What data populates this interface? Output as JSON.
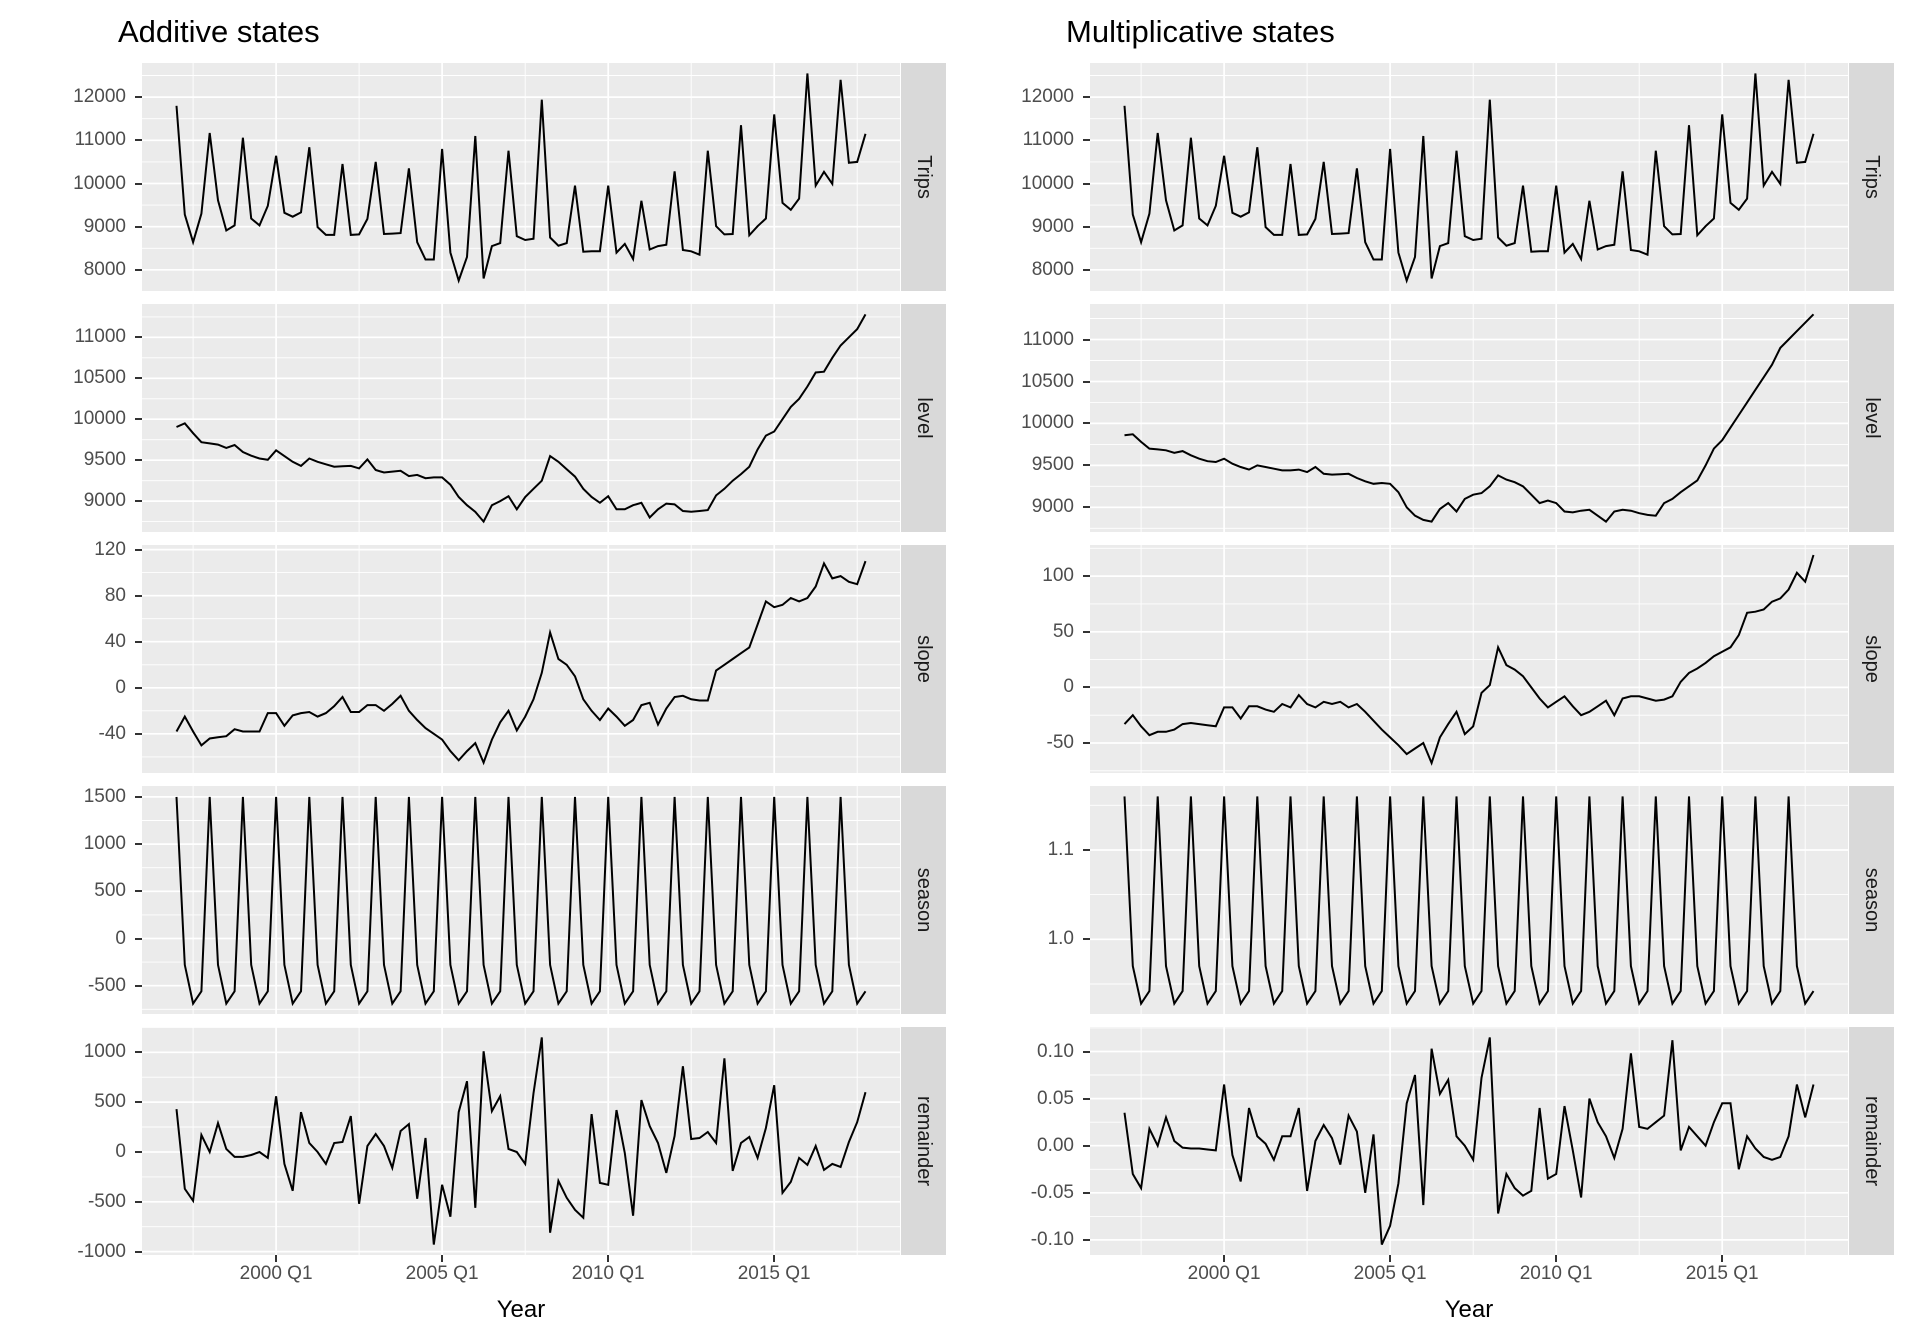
{
  "styles": {
    "page_bg": "#FFFFFF",
    "panel_bg": "#EBEBEB",
    "grid": "#FFFFFF",
    "strip_bg": "#D9D9D9",
    "strip_text": "#1A1A1A",
    "axis_text": "#4D4D4D",
    "tick": "#333333",
    "line": "#000000",
    "title": "#000000"
  },
  "chart_data": {
    "type": "line",
    "description": "ETS state decomposition, faceted time-series line charts",
    "xlabel": "Year",
    "x": {
      "start": 1997.0,
      "step": 0.25,
      "n": 84,
      "domain": [
        1995.96,
        2018.79
      ],
      "major_ticks": [
        {
          "value": 2000,
          "label": "2000 Q1"
        },
        {
          "value": 2005,
          "label": "2005 Q1"
        },
        {
          "value": 2010,
          "label": "2010 Q1"
        },
        {
          "value": 2015,
          "label": "2015 Q1"
        }
      ],
      "minor_ticks": [
        1997.5,
        2002.5,
        2007.5,
        2012.5,
        2017.5
      ]
    },
    "columns": [
      {
        "id": "additive",
        "title": "Additive states",
        "facets": [
          {
            "label": "Trips",
            "series_key": "trips",
            "ylim": [
              7510,
              12790
            ],
            "yticks": [
              {
                "v": 12000,
                "label": "12000"
              },
              {
                "v": 11000,
                "label": "11000"
              },
              {
                "v": 10000,
                "label": "10000"
              },
              {
                "v": 9000,
                "label": "9000"
              },
              {
                "v": 8000,
                "label": "8000"
              }
            ],
            "yminor": [
              8500,
              9500,
              10500,
              11500,
              12500
            ]
          },
          {
            "label": "level",
            "series_key": "additive_level",
            "ylim": [
              8623,
              11407
            ],
            "yticks": [
              {
                "v": 11000,
                "label": "11000"
              },
              {
                "v": 10500,
                "label": "10500"
              },
              {
                "v": 10000,
                "label": "10000"
              },
              {
                "v": 9500,
                "label": "9500"
              },
              {
                "v": 9000,
                "label": "9000"
              }
            ],
            "yminor": [
              8750,
              9250,
              9750,
              10250,
              10750,
              11250
            ]
          },
          {
            "label": "slope",
            "series_key": "additive_slope",
            "ylim": [
              -74,
              124
            ],
            "yticks": [
              {
                "v": 120,
                "label": "120"
              },
              {
                "v": 80,
                "label": "80"
              },
              {
                "v": 40,
                "label": "40"
              },
              {
                "v": 0,
                "label": "0"
              },
              {
                "v": -40,
                "label": "-40"
              }
            ],
            "yminor": [
              -60,
              -20,
              20,
              60,
              100
            ]
          },
          {
            "label": "season",
            "series_key": "additive_season",
            "ylim": [
              -800,
              1615
            ],
            "yticks": [
              {
                "v": 1500,
                "label": "1500"
              },
              {
                "v": 1000,
                "label": "1000"
              },
              {
                "v": 500,
                "label": "500"
              },
              {
                "v": 0,
                "label": "0"
              },
              {
                "v": -500,
                "label": "-500"
              }
            ],
            "yminor": [
              -750,
              -250,
              250,
              750,
              1250
            ]
          },
          {
            "label": "remainder",
            "series_key": "additive_remainder",
            "ylim": [
              -1034,
              1254
            ],
            "yticks": [
              {
                "v": 1000,
                "label": "1000"
              },
              {
                "v": 500,
                "label": "500"
              },
              {
                "v": 0,
                "label": "0"
              },
              {
                "v": -500,
                "label": "-500"
              },
              {
                "v": -1000,
                "label": "-1000"
              }
            ],
            "yminor": [
              -750,
              -250,
              250,
              750,
              1250
            ]
          }
        ]
      },
      {
        "id": "multiplicative",
        "title": "Multiplicative states",
        "facets": [
          {
            "label": "Trips",
            "series_key": "trips",
            "ylim": [
              7510,
              12790
            ],
            "yticks": [
              {
                "v": 12000,
                "label": "12000"
              },
              {
                "v": 11000,
                "label": "11000"
              },
              {
                "v": 10000,
                "label": "10000"
              },
              {
                "v": 9000,
                "label": "9000"
              },
              {
                "v": 8000,
                "label": "8000"
              }
            ],
            "yminor": [
              8500,
              9500,
              10500,
              11500,
              12500
            ]
          },
          {
            "label": "level",
            "series_key": "multiplicative_level",
            "ylim": [
              8706,
              11423
            ],
            "yticks": [
              {
                "v": 11000,
                "label": "11000"
              },
              {
                "v": 10500,
                "label": "10500"
              },
              {
                "v": 10000,
                "label": "10000"
              },
              {
                "v": 9500,
                "label": "9500"
              },
              {
                "v": 9000,
                "label": "9000"
              }
            ],
            "yminor": [
              8750,
              9250,
              9750,
              10250,
              10750,
              11250
            ]
          },
          {
            "label": "slope",
            "series_key": "multiplicative_slope",
            "ylim": [
              -77,
              128
            ],
            "yticks": [
              {
                "v": 100,
                "label": "100"
              },
              {
                "v": 50,
                "label": "50"
              },
              {
                "v": 0,
                "label": "0"
              },
              {
                "v": -50,
                "label": "-50"
              }
            ],
            "yminor": [
              -75,
              -25,
              25,
              75,
              125
            ]
          },
          {
            "label": "season",
            "series_key": "multiplicative_season",
            "ylim": [
              0.9164,
              1.1716
            ],
            "yticks": [
              {
                "v": 1.1,
                "label": "1.1"
              },
              {
                "v": 1.0,
                "label": "1.0"
              }
            ],
            "yminor": [
              0.95,
              1.05,
              1.15
            ]
          },
          {
            "label": "remainder",
            "series_key": "multiplicative_remainder",
            "ylim": [
              -0.116,
              0.126
            ],
            "yticks": [
              {
                "v": 0.1,
                "label": "0.10"
              },
              {
                "v": 0.05,
                "label": "0.05"
              },
              {
                "v": 0.0,
                "label": "0.00"
              },
              {
                "v": -0.05,
                "label": "-0.05"
              },
              {
                "v": -0.1,
                "label": "-0.10"
              }
            ],
            "yminor": [
              -0.075,
              -0.025,
              0.025,
              0.075,
              0.125
            ]
          }
        ]
      }
    ],
    "series": {
      "trips": [
        11800,
        9280,
        8640,
        9300,
        11170,
        9610,
        8910,
        9030,
        11060,
        9190,
        9030,
        9480,
        10640,
        9320,
        9230,
        9330,
        10840,
        8990,
        8810,
        8810,
        10450,
        8810,
        8820,
        9180,
        10500,
        8830,
        8840,
        8850,
        10350,
        8640,
        8240,
        8240,
        10800,
        8400,
        7750,
        8300,
        11100,
        7800,
        8550,
        8620,
        10760,
        8780,
        8690,
        8720,
        11940,
        8750,
        8560,
        8620,
        9950,
        8420,
        8430,
        8430,
        9950,
        8400,
        8600,
        8250,
        9600,
        8470,
        8550,
        8580,
        10280,
        8460,
        8430,
        8350,
        10760,
        9010,
        8820,
        8830,
        11350,
        8800,
        9010,
        9190,
        11600,
        9550,
        9390,
        9650,
        12550,
        9950,
        10270,
        9990,
        12400,
        10480,
        10500,
        11150
      ],
      "additive_level": [
        9905,
        9950,
        9830,
        9720,
        9705,
        9690,
        9650,
        9685,
        9600,
        9555,
        9520,
        9505,
        9620,
        9550,
        9480,
        9430,
        9520,
        9480,
        9450,
        9420,
        9425,
        9430,
        9400,
        9510,
        9380,
        9350,
        9360,
        9370,
        9305,
        9320,
        9280,
        9290,
        9290,
        9200,
        9050,
        8950,
        8870,
        8750,
        8950,
        9000,
        9060,
        8900,
        9050,
        9150,
        9250,
        9550,
        9480,
        9390,
        9300,
        9150,
        9050,
        8980,
        9060,
        8900,
        8900,
        8950,
        8980,
        8800,
        8900,
        8970,
        8960,
        8880,
        8870,
        8880,
        8890,
        9070,
        9150,
        9250,
        9330,
        9420,
        9630,
        9800,
        9850,
        10000,
        10150,
        10250,
        10400,
        10570,
        10580,
        10750,
        10900,
        11000,
        11100,
        11280
      ],
      "additive_slope": [
        -38,
        -25,
        -38,
        -50,
        -44,
        -43,
        -42,
        -36,
        -38,
        -38,
        -38,
        -22,
        -22,
        -33,
        -24,
        -22,
        -21,
        -25,
        -22,
        -16,
        -8,
        -21,
        -21,
        -15,
        -15,
        -20,
        -14,
        -7,
        -20,
        -28,
        -35,
        -40,
        -45,
        -55,
        -63,
        -55,
        -48,
        -65,
        -45,
        -30,
        -20,
        -37,
        -25,
        -10,
        13,
        48,
        25,
        20,
        10,
        -10,
        -20,
        -28,
        -18,
        -25,
        -33,
        -28,
        -15,
        -13,
        -32,
        -18,
        -8,
        -7,
        -10,
        -11,
        -11,
        15,
        20,
        25,
        30,
        35,
        55,
        75,
        70,
        72,
        78,
        75,
        78,
        88,
        108,
        95,
        97,
        92,
        90,
        110
      ],
      "additive_season": {
        "pattern": [
          1500,
          -280,
          -690,
          -560
        ],
        "repeat": 21
      },
      "additive_remainder": [
        430,
        -370,
        -490,
        170,
        0,
        290,
        30,
        -50,
        -50,
        -30,
        0,
        -60,
        560,
        -120,
        -390,
        400,
        90,
        0,
        -120,
        90,
        100,
        360,
        -520,
        60,
        180,
        60,
        -160,
        210,
        280,
        -470,
        140,
        -930,
        -330,
        -650,
        400,
        710,
        -560,
        1010,
        410,
        560,
        30,
        0,
        -120,
        590,
        1150,
        -810,
        -290,
        -460,
        -580,
        -660,
        380,
        -310,
        -330,
        420,
        -10,
        -640,
        520,
        260,
        90,
        -210,
        160,
        860,
        130,
        140,
        200,
        90,
        940,
        -190,
        90,
        150,
        -60,
        240,
        670,
        -410,
        -300,
        -60,
        -130,
        60,
        -180,
        -120,
        -150,
        100,
        300,
        600
      ],
      "multiplicative_level": [
        9860,
        9870,
        9780,
        9700,
        9690,
        9680,
        9650,
        9670,
        9620,
        9580,
        9550,
        9540,
        9580,
        9520,
        9480,
        9450,
        9500,
        9480,
        9460,
        9440,
        9440,
        9450,
        9420,
        9480,
        9400,
        9390,
        9395,
        9400,
        9350,
        9310,
        9280,
        9290,
        9280,
        9180,
        9000,
        8900,
        8850,
        8830,
        8980,
        9050,
        8950,
        9100,
        9150,
        9170,
        9250,
        9380,
        9330,
        9300,
        9250,
        9150,
        9050,
        9080,
        9050,
        8950,
        8940,
        8960,
        8970,
        8900,
        8830,
        8950,
        8970,
        8960,
        8930,
        8910,
        8900,
        9050,
        9100,
        9180,
        9250,
        9320,
        9500,
        9700,
        9800,
        9950,
        10100,
        10250,
        10400,
        10550,
        10700,
        10900,
        11000,
        11100,
        11200,
        11300
      ],
      "multiplicative_slope": [
        -33,
        -25,
        -35,
        -43,
        -40,
        -40,
        -38,
        -33,
        -32,
        -33,
        -34,
        -35,
        -18,
        -18,
        -28,
        -17,
        -17,
        -20,
        -22,
        -15,
        -18,
        -7,
        -15,
        -18,
        -13,
        -15,
        -13,
        -18,
        -15,
        -22,
        -30,
        -38,
        -45,
        -52,
        -60,
        -55,
        -50,
        -68,
        -45,
        -33,
        -22,
        -42,
        -35,
        -5,
        2,
        36,
        20,
        16,
        10,
        0,
        -10,
        -18,
        -13,
        -8,
        -17,
        -25,
        -22,
        -17,
        -12,
        -25,
        -10,
        -8,
        -8,
        -10,
        -12,
        -11,
        -8,
        5,
        13,
        17,
        22,
        28,
        32,
        36,
        47,
        67,
        68,
        70,
        77,
        80,
        88,
        103,
        95,
        119
      ],
      "multiplicative_season": {
        "pattern": [
          1.16,
          0.97,
          0.928,
          0.942
        ],
        "repeat": 21
      },
      "multiplicative_remainder": [
        0.035,
        -0.03,
        -0.045,
        0.018,
        0.0,
        0.03,
        0.005,
        -0.002,
        -0.003,
        -0.003,
        -0.004,
        -0.005,
        0.065,
        -0.01,
        -0.038,
        0.04,
        0.01,
        0.002,
        -0.015,
        0.01,
        0.01,
        0.04,
        -0.048,
        0.005,
        0.022,
        0.008,
        -0.02,
        0.032,
        0.015,
        -0.05,
        0.012,
        -0.105,
        -0.085,
        -0.04,
        0.045,
        0.075,
        -0.063,
        0.103,
        0.055,
        0.07,
        0.01,
        0.0,
        -0.015,
        0.072,
        0.115,
        -0.072,
        -0.03,
        -0.045,
        -0.053,
        -0.048,
        0.04,
        -0.035,
        -0.03,
        0.042,
        -0.005,
        -0.055,
        0.05,
        0.025,
        0.01,
        -0.013,
        0.018,
        0.098,
        0.02,
        0.018,
        0.025,
        0.032,
        0.112,
        -0.005,
        0.02,
        0.01,
        0.0,
        0.025,
        0.045,
        0.045,
        -0.025,
        0.01,
        -0.003,
        -0.012,
        -0.015,
        -0.012,
        0.01,
        0.065,
        0.03,
        0.065
      ]
    }
  }
}
